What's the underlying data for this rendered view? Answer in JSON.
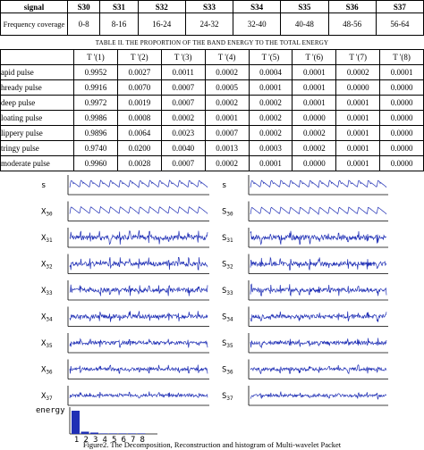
{
  "freq_table": {
    "headers": [
      "signal",
      "S30",
      "S31",
      "S32",
      "S33",
      "S34",
      "S35",
      "S36",
      "S37"
    ],
    "row_label": "Frequency coverage",
    "values": [
      "0-8",
      "8-16",
      "16-24",
      "24-32",
      "32-40",
      "40-48",
      "48-56",
      "56-64"
    ]
  },
  "table2": {
    "caption": "TABLE II.   THE PROPORTION OF THE BAND ENERGY TO THE TOTAL ENERGY",
    "headers": [
      "T '(1)",
      "T '(2)",
      "T '(3)",
      "T '(4)",
      "T '(5)",
      "T '(6)",
      "T '(7)",
      "T '(8)"
    ],
    "rows": [
      {
        "label": "apid pulse",
        "values": [
          "0.9952",
          "0.0027",
          "0.0011",
          "0.0002",
          "0.0004",
          "0.0001",
          "0.0002",
          "0.0001"
        ]
      },
      {
        "label": "hready pulse",
        "values": [
          "0.9916",
          "0.0070",
          "0.0007",
          "0.0005",
          "0.0001",
          "0.0001",
          "0.0000",
          "0.0000"
        ]
      },
      {
        "label": "deep pulse",
        "values": [
          "0.9972",
          "0.0019",
          "0.0007",
          "0.0002",
          "0.0002",
          "0.0001",
          "0.0001",
          "0.0000"
        ]
      },
      {
        "label": "loating pulse",
        "values": [
          "0.9986",
          "0.0008",
          "0.0002",
          "0.0001",
          "0.0002",
          "0.0000",
          "0.0001",
          "0.0000"
        ]
      },
      {
        "label": "lippery pulse",
        "values": [
          "0.9896",
          "0.0064",
          "0.0023",
          "0.0007",
          "0.0002",
          "0.0002",
          "0.0001",
          "0.0000"
        ]
      },
      {
        "label": "tringy pulse",
        "values": [
          "0.9740",
          "0.0200",
          "0.0040",
          "0.0013",
          "0.0003",
          "0.0002",
          "0.0001",
          "0.0000"
        ]
      },
      {
        "label": "moderate pulse",
        "values": [
          "0.9960",
          "0.0028",
          "0.0007",
          "0.0002",
          "0.0001",
          "0.0000",
          "0.0001",
          "0.0000"
        ]
      }
    ]
  },
  "figure": {
    "left_labels": [
      {
        "main": "s",
        "sub": ""
      },
      {
        "main": "X",
        "sub": "30"
      },
      {
        "main": "X",
        "sub": "31"
      },
      {
        "main": "X",
        "sub": "32"
      },
      {
        "main": "X",
        "sub": "33"
      },
      {
        "main": "X",
        "sub": "34"
      },
      {
        "main": "X",
        "sub": "35"
      },
      {
        "main": "X",
        "sub": "36"
      },
      {
        "main": "X",
        "sub": "37"
      }
    ],
    "right_labels": [
      {
        "main": "s",
        "sub": ""
      },
      {
        "main": "S",
        "sub": "30"
      },
      {
        "main": "S",
        "sub": "31"
      },
      {
        "main": "S",
        "sub": "32"
      },
      {
        "main": "S",
        "sub": "33"
      },
      {
        "main": "S",
        "sub": "34"
      },
      {
        "main": "S",
        "sub": "35"
      },
      {
        "main": "S",
        "sub": "36"
      },
      {
        "main": "S",
        "sub": "37"
      }
    ],
    "energy_label": "energy",
    "caption": "Figure2.   The Decomposition, Reconstruction and histogram of Multi-wavelet Packet",
    "signal_color": "#1f2fb5",
    "chart_data": {
      "type": "bar",
      "categories": [
        "1",
        "2",
        "3",
        "4",
        "5",
        "6",
        "7",
        "8"
      ],
      "values": [
        0.9952,
        0.0027,
        0.0011,
        0.0002,
        0.0004,
        0.0001,
        0.0002,
        0.0001
      ],
      "title": "",
      "xlabel": "",
      "ylabel": "energy"
    }
  }
}
